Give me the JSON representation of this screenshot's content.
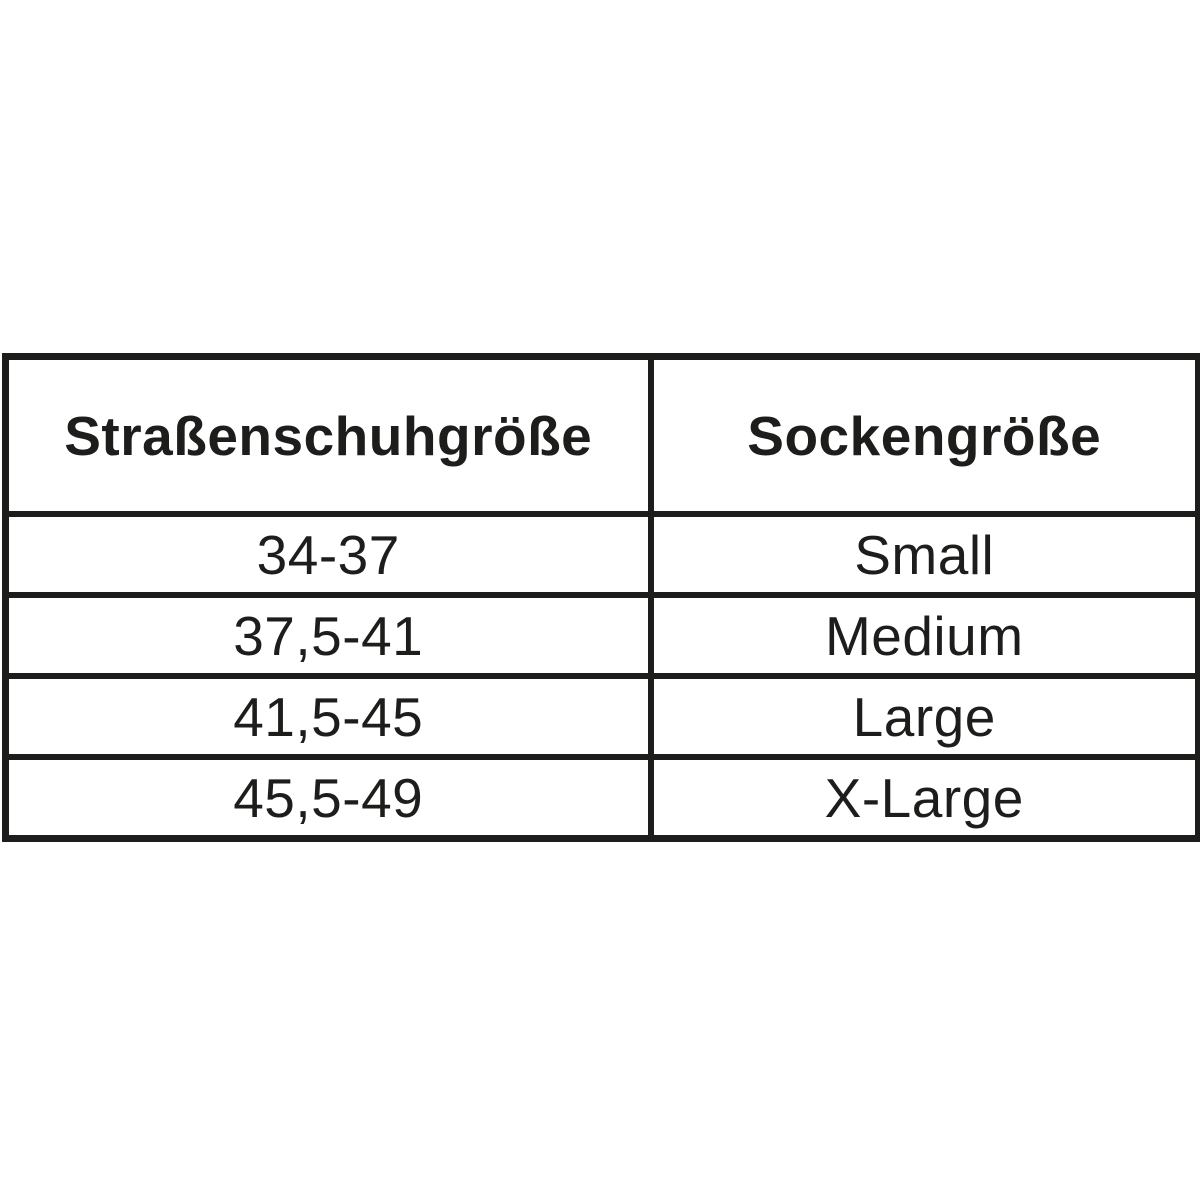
{
  "chart_data": {
    "type": "table",
    "columns": [
      "Straßenschuhgröße",
      "Sockengröße"
    ],
    "rows": [
      [
        "34-37",
        "Small"
      ],
      [
        "37,5-41",
        "Medium"
      ],
      [
        "41,5-45",
        "Large"
      ],
      [
        "45,5-49",
        "X-Large"
      ]
    ],
    "layout_hints": {
      "header_bold": true,
      "grid": "all-borders",
      "alignment": "center"
    }
  },
  "table": {
    "header": {
      "shoe_size": "Straßenschuhgröße",
      "sock_size": "Sockengröße"
    },
    "rows": [
      {
        "shoe_size": "34-37",
        "sock_size": "Small"
      },
      {
        "shoe_size": "37,5-41",
        "sock_size": "Medium"
      },
      {
        "shoe_size": "41,5-45",
        "sock_size": "Large"
      },
      {
        "shoe_size": "45,5-49",
        "sock_size": "X-Large"
      }
    ]
  },
  "colors": {
    "text": "#1d1d1b",
    "border": "#1d1d1b",
    "background": "#ffffff"
  }
}
